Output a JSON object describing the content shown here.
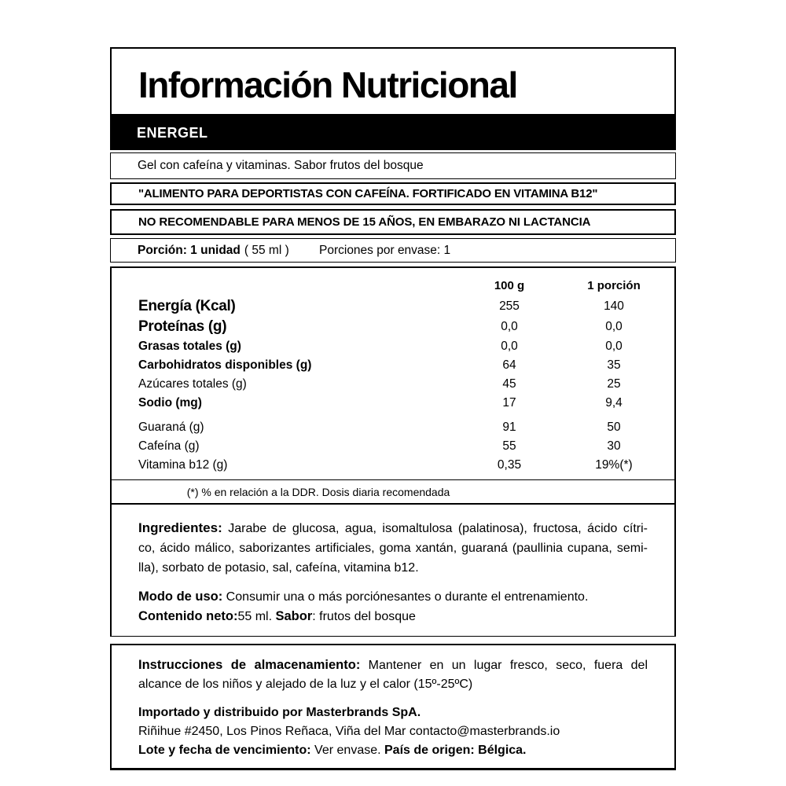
{
  "title": "Información Nutricional",
  "brand_bar": "ENERGEL",
  "description": "Gel con cafeína y vitaminas. Sabor frutos del bosque",
  "claim": "\"ALIMENTO PARA DEPORTISTAS CON CAFEÍNA. FORTIFICADO EN VITAMINA B12\"",
  "warning": "NO RECOMENDABLE PARA MENOS DE 15 AÑOS, EN EMBARAZO NI LACTANCIA",
  "serving": {
    "portion_label": "Porción: 1 unidad",
    "portion_detail": "( 55 ml )",
    "per_package": "Porciones por envase: 1"
  },
  "table": {
    "col_100g": "100 g",
    "col_portion": "1 porción",
    "rows": [
      {
        "label": "Energía (Kcal)",
        "v100": "255",
        "vp": "140"
      },
      {
        "label": "Proteínas (g)",
        "v100": "0,0",
        "vp": "0,0"
      },
      {
        "label": "Grasas totales (g)",
        "v100": "0,0",
        "vp": "0,0"
      },
      {
        "label": "Carbohidratos disponibles (g)",
        "v100": "64",
        "vp": "35"
      },
      {
        "label": "Azúcares totales (g)",
        "v100": "45",
        "vp": "25"
      },
      {
        "label": "Sodio (mg)",
        "v100": "17",
        "vp": "9,4"
      },
      {
        "label": "Guaraná (g)",
        "v100": "91",
        "vp": "50"
      },
      {
        "label": "Cafeína (g)",
        "v100": "55",
        "vp": "30"
      },
      {
        "label": "Vitamina b12 (g)",
        "v100": "0,35",
        "vp": "19%(*)"
      }
    ],
    "footnote": "(*) % en relación a la DDR. Dosis diaria recomendada"
  },
  "ingredients": {
    "label": "Ingredientes:",
    "line1": "Jarabe de glucosa, agua, isomaltulosa (palatinosa), fructosa, ácido cítri-",
    "line2": "co, ácido málico, saborizantes artificiales, goma xantán, guaraná (paullinia cupana, semi-",
    "line3": "lla), sorbato de potasio, sal, cafeína, vitamina b12."
  },
  "usage": {
    "label": "Modo de uso:",
    "text": " Consumir una o más porciónesantes o  durante el entrenamiento."
  },
  "net_content": {
    "label": "Contenido neto:",
    "value": "55 ml. ",
    "flavor_label": "Sabor",
    "flavor_value": ": frutos del bosque"
  },
  "storage": {
    "label": "Instrucciones de almacenamiento:",
    "line1": " Mantener en un lugar fresco, seco, fuera del",
    "line2": "alcance de los niños y alejado de la luz y el calor (15º-25ºC)"
  },
  "importer": {
    "line1": "Importado y distribuido por Masterbrands SpA.",
    "line2": "Riñihue #2450, Los Pinos Reñaca, Viña del Mar contacto@masterbrands.io",
    "lot_label": "Lote y fecha de vencimiento:",
    "lot_value": " Ver envase. ",
    "origin_label": "País de origen: Bélgica."
  },
  "colors": {
    "ink": "#000000",
    "paper": "#ffffff"
  }
}
